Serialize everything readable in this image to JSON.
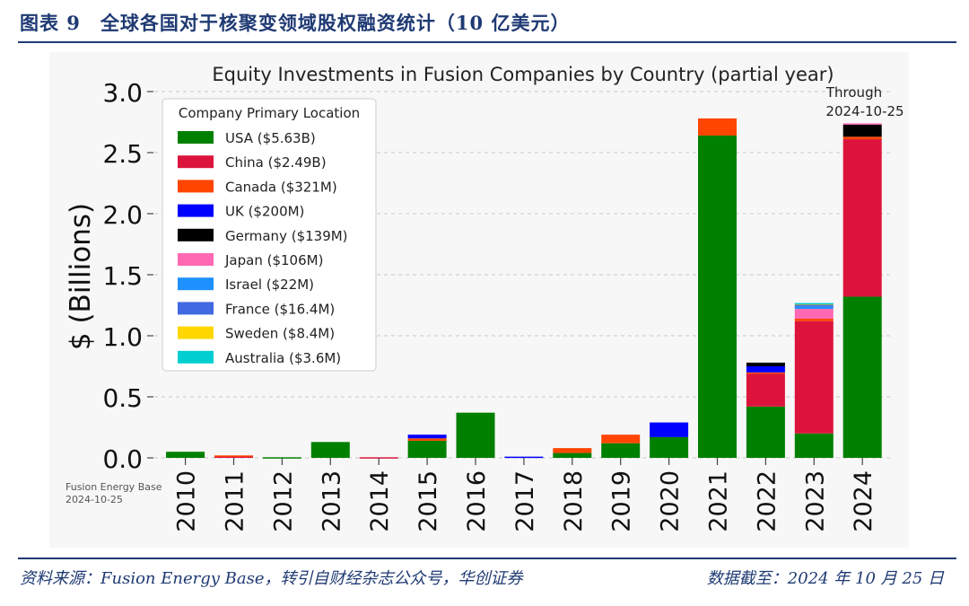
{
  "header": {
    "figure_no": "图表 9",
    "caption": "全球各国对于核聚变领域股权融资统计（10 亿美元）"
  },
  "footer": {
    "source": "资料来源：Fusion Energy Base，转引自财经杂志公众号，华创证券",
    "date": "数据截至：2024 年 10 月 25 日"
  },
  "watermark": {
    "line1": "Fusion Energy Base",
    "line2": "2024-10-25"
  },
  "annotation": {
    "line1": "Through",
    "line2": "2024-10-25"
  },
  "chart_data": {
    "type": "bar",
    "stacked": true,
    "title": "Equity Investments in Fusion Companies by Country (partial year)",
    "xlabel": "",
    "ylabel": "$ (Billions)",
    "ylim": [
      0,
      3.0
    ],
    "yticks": [
      "0.0",
      "0.5",
      "1.0",
      "1.5",
      "2.0",
      "2.5",
      "3.0"
    ],
    "grid": "horizontal dashed",
    "legend_title": "Company Primary Location",
    "legend_position": "upper-left",
    "categories": [
      "2010",
      "2011",
      "2012",
      "2013",
      "2014",
      "2015",
      "2016",
      "2017",
      "2018",
      "2019",
      "2020",
      "2021",
      "2022",
      "2023",
      "2024"
    ],
    "series": [
      {
        "name": "USA ($5.63B)",
        "color": "#008000",
        "values": [
          0.05,
          0.0,
          0.005,
          0.13,
          0.0,
          0.14,
          0.37,
          0.0,
          0.04,
          0.12,
          0.17,
          2.64,
          0.42,
          0.2,
          1.32
        ]
      },
      {
        "name": "China ($2.49B)",
        "color": "#dc143c",
        "values": [
          0,
          0.015,
          0,
          0,
          0.005,
          0,
          0,
          0,
          0,
          0,
          0,
          0,
          0.27,
          0.92,
          1.29
        ]
      },
      {
        "name": "Canada ($321M)",
        "color": "#ff4500",
        "values": [
          0,
          0.005,
          0,
          0,
          0,
          0.02,
          0,
          0,
          0.04,
          0.07,
          0,
          0.14,
          0.01,
          0.02,
          0.02
        ]
      },
      {
        "name": "UK ($200M)",
        "color": "#0000ff",
        "values": [
          0,
          0,
          0,
          0,
          0,
          0.03,
          0,
          0.01,
          0,
          0,
          0.12,
          0,
          0.05,
          0,
          0
        ]
      },
      {
        "name": "Germany ($139M)",
        "color": "#000000",
        "values": [
          0,
          0,
          0,
          0,
          0,
          0,
          0,
          0,
          0,
          0,
          0,
          0,
          0.03,
          0,
          0.1
        ]
      },
      {
        "name": "Japan ($106M)",
        "color": "#ff69b4",
        "values": [
          0,
          0,
          0,
          0,
          0,
          0,
          0,
          0,
          0,
          0,
          0,
          0,
          0,
          0.08,
          0.01
        ]
      },
      {
        "name": "Israel ($22M)",
        "color": "#1e90ff",
        "values": [
          0,
          0,
          0,
          0,
          0,
          0,
          0,
          0,
          0,
          0,
          0,
          0,
          0,
          0.02,
          0
        ]
      },
      {
        "name": "France ($16.4M)",
        "color": "#4169e1",
        "values": [
          0,
          0,
          0,
          0,
          0,
          0,
          0,
          0,
          0,
          0,
          0,
          0,
          0,
          0.016,
          0
        ]
      },
      {
        "name": "Sweden ($8.4M)",
        "color": "#ffd700",
        "values": [
          0,
          0,
          0,
          0,
          0,
          0,
          0,
          0,
          0,
          0,
          0,
          0,
          0,
          0.008,
          0
        ]
      },
      {
        "name": "Australia ($3.6M)",
        "color": "#00ced1",
        "values": [
          0,
          0,
          0,
          0,
          0,
          0,
          0,
          0,
          0,
          0,
          0,
          0,
          0,
          0.004,
          0
        ]
      }
    ]
  }
}
